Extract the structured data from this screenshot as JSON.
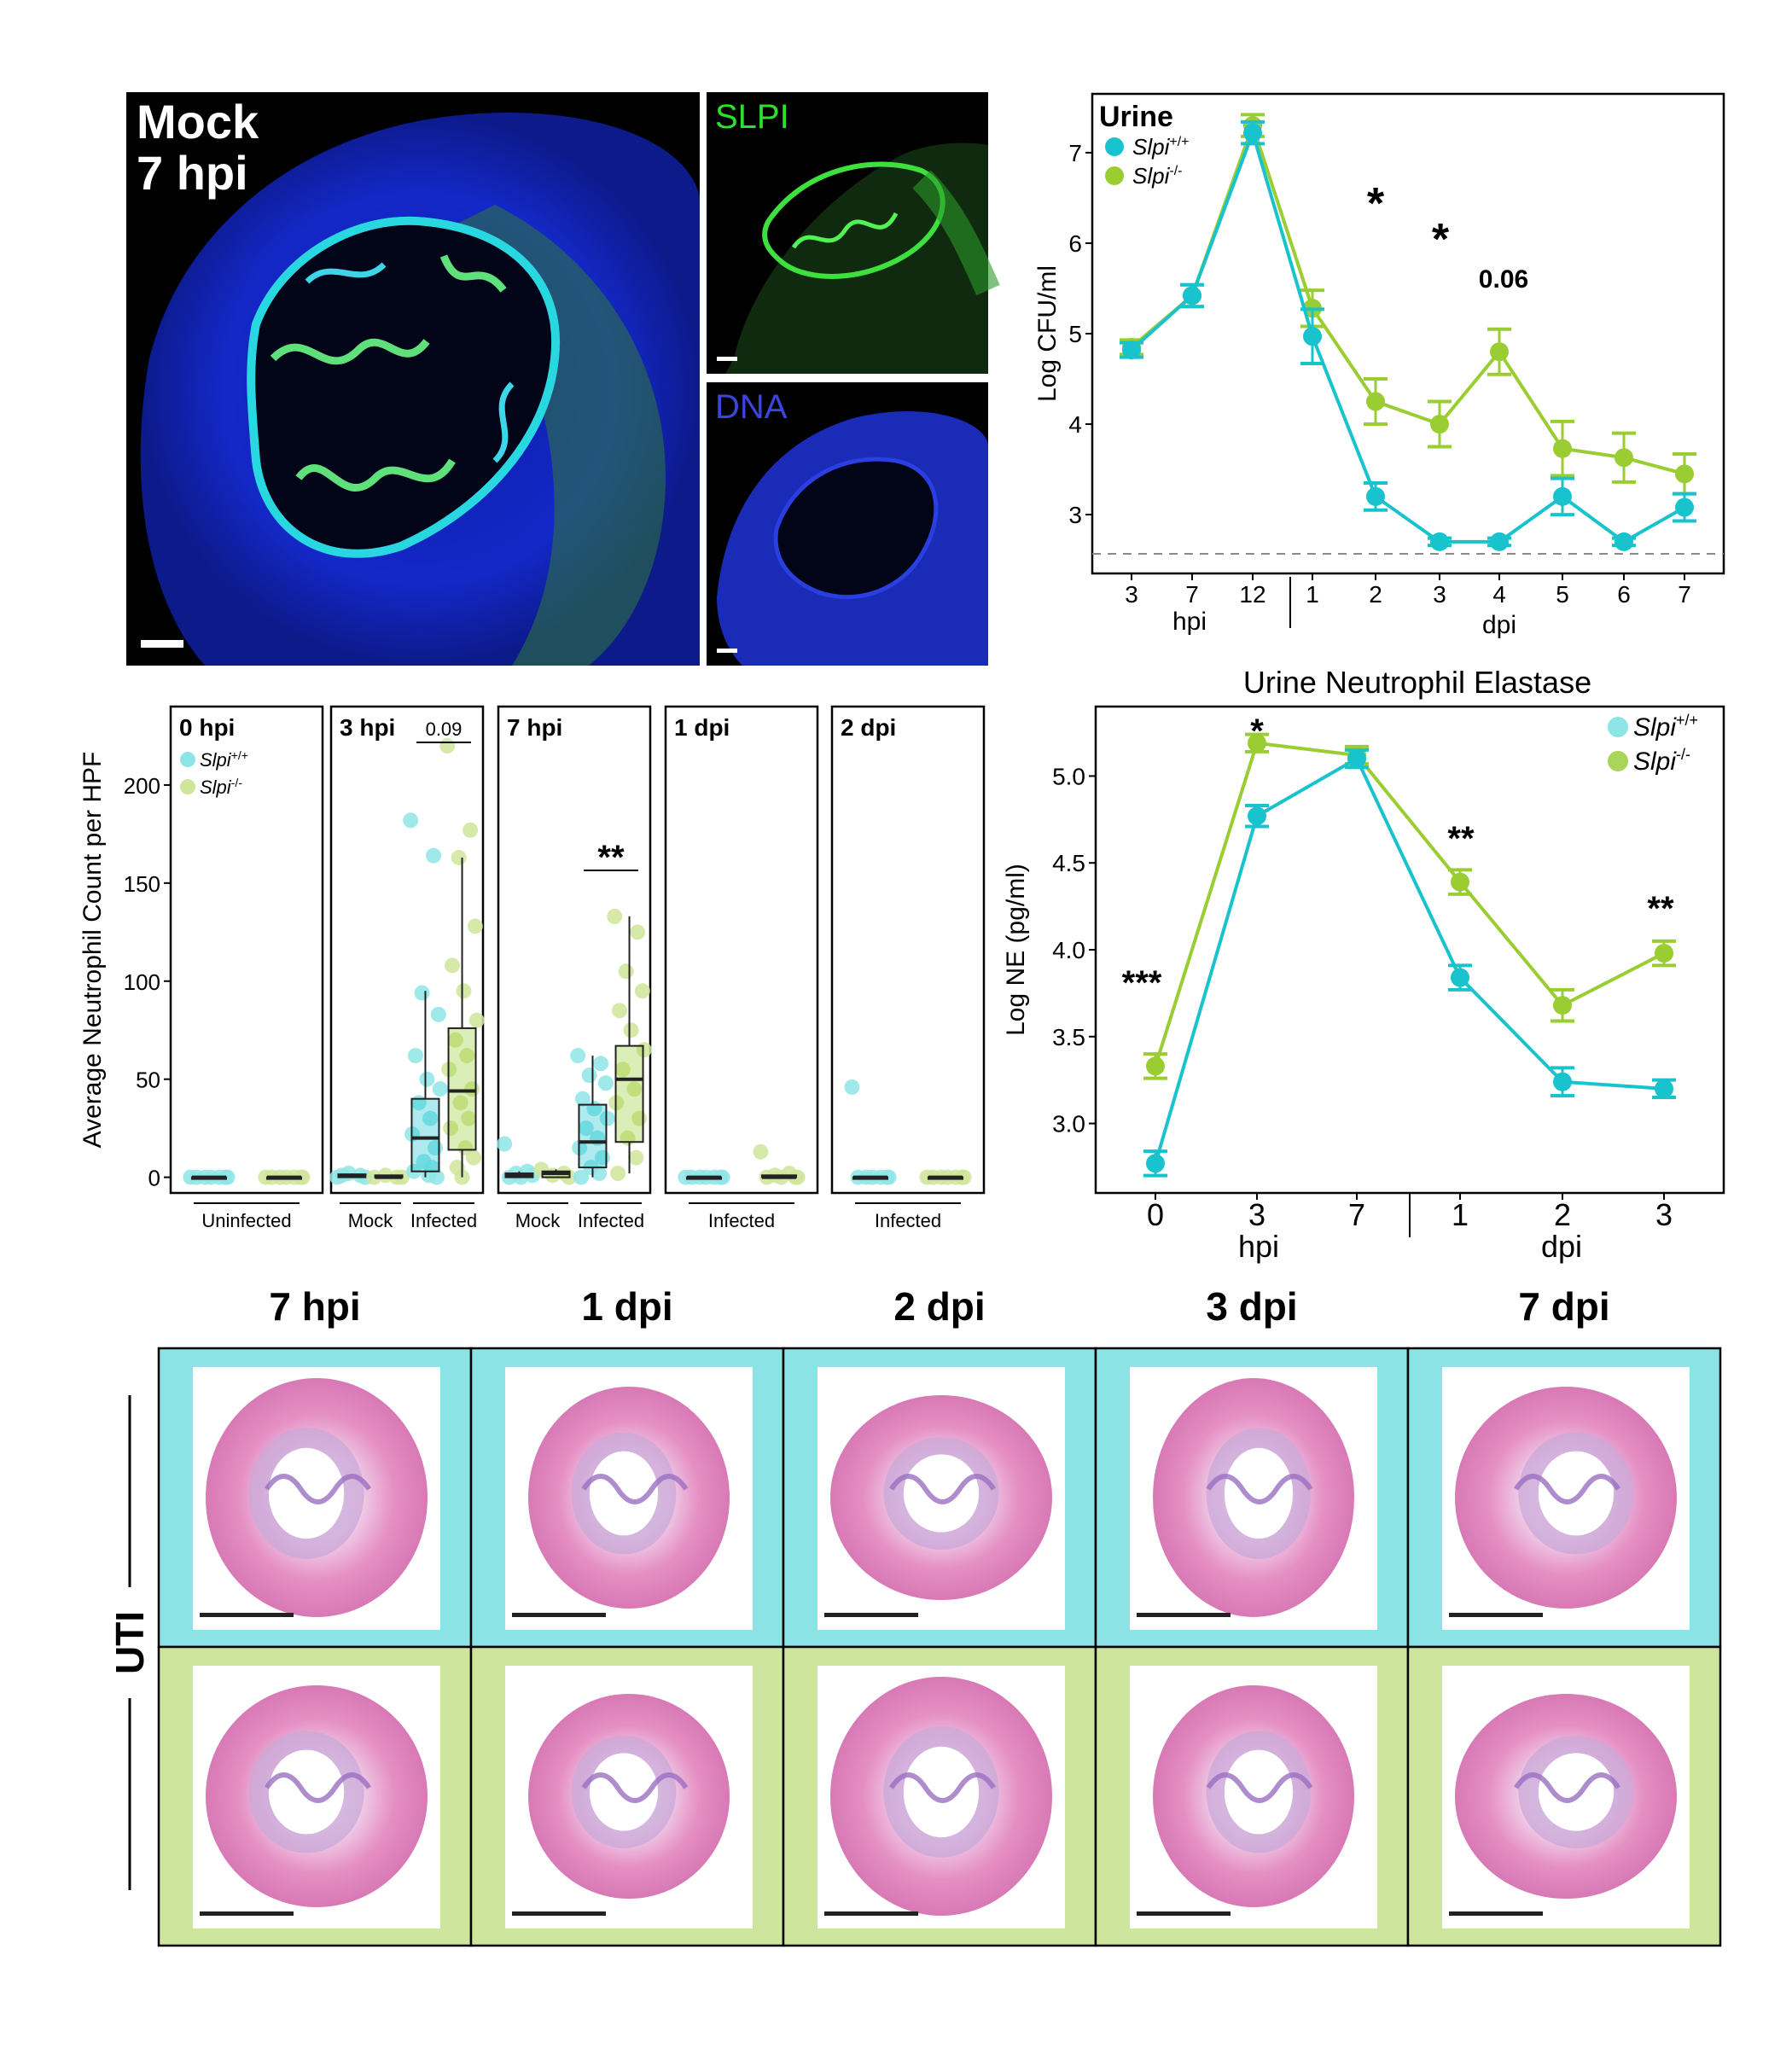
{
  "colors": {
    "wt": "#19c3cd",
    "ko": "#9acd32",
    "wt_light": "#8ee5e8",
    "ko_light": "#cfe59a",
    "grid_dash": "#8a8a8a"
  },
  "micrographs": {
    "main_label_1": "Mock",
    "main_label_2": "7 hpi",
    "slpi_label": "SLPI",
    "dna_label": "DNA"
  },
  "urine_cfu": {
    "chart_data": {
      "type": "line",
      "title": "Urine",
      "ylabel": "Log CFU/ml",
      "ylim": [
        2.35,
        7.65
      ],
      "yticks": [
        3,
        4,
        5,
        6,
        7
      ],
      "categories": [
        "3",
        "7",
        "12",
        "1",
        "2",
        "3",
        "4",
        "5",
        "6",
        "7"
      ],
      "group_labels": [
        "hpi",
        "dpi"
      ],
      "detection_limit": 2.6,
      "series": [
        {
          "name": "Slpi +/+",
          "genotype": "Slpi",
          "superscript": "+/+",
          "values": [
            4.82,
            5.42,
            7.22,
            4.97,
            3.2,
            2.7,
            2.7,
            3.2,
            2.7,
            3.08
          ],
          "errors": [
            0.08,
            0.12,
            0.12,
            0.3,
            0.15,
            0.04,
            0.04,
            0.2,
            0.04,
            0.15
          ]
        },
        {
          "name": "Slpi -/-",
          "genotype": "Slpi",
          "superscript": "-/-",
          "values": [
            4.85,
            5.42,
            7.3,
            5.28,
            4.25,
            4.0,
            4.8,
            3.73,
            3.63,
            3.45
          ],
          "errors": [
            0.08,
            0.12,
            0.12,
            0.2,
            0.25,
            0.25,
            0.25,
            0.3,
            0.27,
            0.22
          ]
        }
      ],
      "annotations": [
        {
          "text": "*",
          "at": "2 dpi"
        },
        {
          "text": "*",
          "at": "3 dpi"
        },
        {
          "text": "0.06",
          "at": "4 dpi"
        }
      ]
    }
  },
  "neutrophil": {
    "chart_data": {
      "type": "box",
      "ylabel": "Average Neutrophil Count per HPF",
      "ylim": [
        -8,
        240
      ],
      "yticks": [
        0,
        50,
        100,
        150,
        200
      ],
      "legend": [
        {
          "genotype": "Slpi",
          "superscript": "+/+"
        },
        {
          "genotype": "Slpi",
          "superscript": "-/-"
        }
      ],
      "panels": [
        {
          "title": "0 hpi",
          "groups": [
            {
              "label": "Uninfected",
              "wt": {
                "q1": 0,
                "median": 0,
                "q3": 0,
                "whisk_lo": 0,
                "whisk_hi": 0,
                "points": [
                  0,
                  0,
                  0,
                  0,
                  0,
                  0,
                  0
                ]
              },
              "ko": {
                "q1": 0,
                "median": 0,
                "q3": 0,
                "whisk_lo": 0,
                "whisk_hi": 0,
                "points": [
                  0,
                  0,
                  0,
                  0,
                  0,
                  0,
                  0
                ]
              }
            }
          ]
        },
        {
          "title": "3 hpi",
          "pvalue": "0.09",
          "groups": [
            {
              "label": "Mock",
              "wt": {
                "q1": 0,
                "median": 1,
                "q3": 1.5,
                "whisk_lo": 0,
                "whisk_hi": 2,
                "points": [
                  0,
                  1,
                  2,
                  0,
                  1
                ]
              },
              "ko": {
                "q1": 0,
                "median": 0,
                "q3": 1,
                "whisk_lo": 0,
                "whisk_hi": 1,
                "points": [
                  0,
                  0,
                  1,
                  0
                ]
              }
            },
            {
              "label": "Infected",
              "wt": {
                "q1": 3,
                "median": 20,
                "q3": 40,
                "whisk_lo": 0,
                "whisk_hi": 95,
                "points": [
                  182,
                  164,
                  94,
                  83,
                  62,
                  50,
                  45,
                  38,
                  30,
                  22,
                  15,
                  8,
                  5,
                  3,
                  1,
                  0
                ]
              },
              "ko": {
                "q1": 14,
                "median": 44,
                "q3": 76,
                "whisk_lo": 0,
                "whisk_hi": 163,
                "points": [
                  220,
                  177,
                  163,
                  128,
                  108,
                  95,
                  80,
                  70,
                  62,
                  55,
                  45,
                  38,
                  30,
                  25,
                  15,
                  10,
                  5,
                  0
                ]
              }
            }
          ]
        },
        {
          "title": "7 hpi",
          "stars": "**",
          "groups": [
            {
              "label": "Mock",
              "wt": {
                "q1": 0,
                "median": 1,
                "q3": 2,
                "whisk_lo": 0,
                "whisk_hi": 3,
                "points": [
                  17,
                  3,
                  2,
                  1,
                  0,
                  0
                ]
              },
              "ko": {
                "q1": 0,
                "median": 2,
                "q3": 3,
                "whisk_lo": 0,
                "whisk_hi": 4,
                "points": [
                  4,
                  2,
                  1,
                  0
                ]
              }
            },
            {
              "label": "Infected",
              "wt": {
                "q1": 5,
                "median": 18,
                "q3": 37,
                "whisk_lo": 0,
                "whisk_hi": 62,
                "points": [
                  62,
                  58,
                  52,
                  48,
                  40,
                  35,
                  30,
                  25,
                  20,
                  15,
                  10,
                  5,
                  2,
                  0
                ]
              },
              "ko": {
                "q1": 18,
                "median": 50,
                "q3": 67,
                "whisk_lo": 2,
                "whisk_hi": 133,
                "points": [
                  133,
                  125,
                  105,
                  95,
                  85,
                  75,
                  65,
                  55,
                  45,
                  38,
                  30,
                  20,
                  10,
                  2
                ]
              }
            }
          ]
        },
        {
          "title": "1 dpi",
          "groups": [
            {
              "label": "Infected",
              "wt": {
                "q1": 0,
                "median": 0,
                "q3": 0,
                "whisk_lo": 0,
                "whisk_hi": 0,
                "points": [
                  0,
                  0,
                  0,
                  0,
                  0,
                  0,
                  0
                ]
              },
              "ko": {
                "q1": 0,
                "median": 0,
                "q3": 1,
                "whisk_lo": 0,
                "whisk_hi": 1,
                "points": [
                  13,
                  2,
                  1,
                  0,
                  0,
                  0,
                  0
                ]
              }
            }
          ]
        },
        {
          "title": "2 dpi",
          "groups": [
            {
              "label": "Infected",
              "wt": {
                "q1": 0,
                "median": 0,
                "q3": 0,
                "whisk_lo": 0,
                "whisk_hi": 0,
                "points": [
                  46,
                  0,
                  0,
                  0,
                  0,
                  0,
                  0
                ]
              },
              "ko": {
                "q1": 0,
                "median": 0,
                "q3": 0,
                "whisk_lo": 0,
                "whisk_hi": 0,
                "points": [
                  0,
                  0,
                  0,
                  0,
                  0,
                  0,
                  0
                ]
              }
            }
          ]
        }
      ]
    }
  },
  "elastase": {
    "chart_data": {
      "type": "line",
      "title": "Urine Neutrophil Elastase",
      "ylabel": "Log NE (pg/ml)",
      "ylim": [
        2.6,
        5.4
      ],
      "yticks": [
        "3.0",
        "3.5",
        "4.0",
        "4.5",
        "5.0"
      ],
      "categories": [
        "0",
        "3",
        "7",
        "1",
        "2",
        "3"
      ],
      "group_labels": [
        "hpi",
        "dpi"
      ],
      "series": [
        {
          "name": "Slpi +/+",
          "genotype": "Slpi",
          "superscript": "+/+",
          "values": [
            2.77,
            4.77,
            5.1,
            3.84,
            3.24,
            3.2
          ],
          "errors": [
            0.07,
            0.06,
            0.05,
            0.07,
            0.08,
            0.05
          ]
        },
        {
          "name": "Slpi -/-",
          "genotype": "Slpi",
          "superscript": "-/-",
          "values": [
            3.33,
            5.19,
            5.12,
            4.39,
            3.68,
            3.98
          ],
          "errors": [
            0.07,
            0.05,
            0.05,
            0.07,
            0.09,
            0.07
          ]
        }
      ],
      "annotations": [
        {
          "text": "***",
          "at": "0 hpi"
        },
        {
          "text": "*",
          "at": "3 hpi"
        },
        {
          "text": "**",
          "at": "1 dpi"
        },
        {
          "text": "**",
          "at": "3 dpi"
        }
      ]
    }
  },
  "histology": {
    "row_label": "UTI",
    "columns": [
      "7 hpi",
      "1 dpi",
      "2 dpi",
      "3 dpi",
      "7 dpi"
    ]
  }
}
